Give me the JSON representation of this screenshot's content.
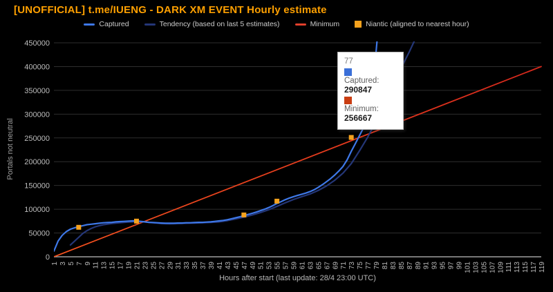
{
  "title": "[UNOFFICIAL] t.me/IUENG - DARK XM EVENT Hourly estimate",
  "legend": [
    {
      "id": "captured",
      "label": "Captured",
      "swatch": "line",
      "color": "#3E78E8"
    },
    {
      "id": "tendency",
      "label": "Tendency (based on last 5 estimates)",
      "swatch": "line",
      "color": "#243677"
    },
    {
      "id": "minimum",
      "label": "Minimum",
      "swatch": "line",
      "color": "#E2402C"
    },
    {
      "id": "niantic",
      "label": "Niantic (aligned to nearest hour)",
      "swatch": "square",
      "color": "#F6A21D"
    }
  ],
  "tooltip": {
    "hour": "77",
    "entries": [
      {
        "label": "Captured:",
        "value": "290847",
        "color": "#3A6FD8"
      },
      {
        "label": "Minimum:",
        "value": "256667",
        "color": "#C93D12"
      }
    ]
  },
  "colors": {
    "background": "#000000",
    "title": "#FFA000",
    "legend_text": "#CCCCCC",
    "tick_text": "#BDBDBD",
    "grid": "#2E2E2E",
    "baseline": "#C0C0C0",
    "captured": "#3E78E8",
    "tendency": "#243677",
    "minimum_start": "#F4511E",
    "minimum_end": "#D5281C",
    "niantic": "#F6A21D"
  },
  "chart_data": {
    "type": "line",
    "title": "[UNOFFICIAL] t.me/IUENG - DARK XM EVENT Hourly estimate",
    "xlabel": "Hours after start (last update: 28/4 23:00 UTC)",
    "ylabel": "Portals not neutral",
    "xlim": [
      1,
      119
    ],
    "ylim": [
      0,
      450000
    ],
    "grid": "horizontal",
    "legend_position": "top",
    "x_ticks": [
      1,
      3,
      5,
      7,
      9,
      11,
      13,
      15,
      17,
      19,
      21,
      23,
      25,
      27,
      29,
      31,
      33,
      35,
      37,
      39,
      41,
      43,
      45,
      47,
      49,
      51,
      53,
      55,
      57,
      59,
      61,
      63,
      65,
      67,
      69,
      71,
      73,
      75,
      77,
      79,
      81,
      83,
      85,
      87,
      89,
      91,
      93,
      95,
      97,
      99,
      101,
      103,
      105,
      107,
      109,
      111,
      113,
      115,
      117,
      119
    ],
    "y_ticks": [
      0,
      50000,
      100000,
      150000,
      200000,
      250000,
      300000,
      350000,
      400000,
      450000
    ],
    "series": [
      {
        "name": "Minimum",
        "type": "line",
        "color": "#E2402C",
        "points": [
          [
            1,
            0
          ],
          [
            119,
            400000
          ]
        ]
      },
      {
        "name": "Tendency (based on last 5 estimates)",
        "type": "line",
        "color": "#243677",
        "points": [
          [
            5,
            25000
          ],
          [
            6,
            33000
          ],
          [
            7,
            41000
          ],
          [
            8,
            49000
          ],
          [
            9,
            55000
          ],
          [
            10,
            59500
          ],
          [
            11,
            63000
          ],
          [
            12,
            65500
          ],
          [
            13,
            67500
          ],
          [
            15,
            70000
          ],
          [
            17,
            71500
          ],
          [
            19,
            73000
          ],
          [
            21,
            74000
          ],
          [
            23,
            73500
          ],
          [
            25,
            71500
          ],
          [
            27,
            70000
          ],
          [
            29,
            69500
          ],
          [
            31,
            70000
          ],
          [
            33,
            70500
          ],
          [
            35,
            71000
          ],
          [
            37,
            71500
          ],
          [
            39,
            72500
          ],
          [
            41,
            73500
          ],
          [
            43,
            76000
          ],
          [
            45,
            79500
          ],
          [
            47,
            83500
          ],
          [
            49,
            88000
          ],
          [
            51,
            93000
          ],
          [
            53,
            99000
          ],
          [
            55,
            106000
          ],
          [
            57,
            113500
          ],
          [
            59,
            120500
          ],
          [
            61,
            126500
          ],
          [
            63,
            132000
          ],
          [
            65,
            139500
          ],
          [
            67,
            149000
          ],
          [
            69,
            161000
          ],
          [
            71,
            176000
          ],
          [
            73,
            196000
          ],
          [
            75,
            223000
          ],
          [
            77,
            252000
          ],
          [
            79,
            285000
          ],
          [
            81,
            322000
          ],
          [
            83,
            360000
          ],
          [
            85,
            396000
          ],
          [
            87,
            430000
          ],
          [
            88.6,
            460000
          ]
        ]
      },
      {
        "name": "Captured",
        "type": "line",
        "color": "#3E78E8",
        "points": [
          [
            1,
            12000
          ],
          [
            2,
            33000
          ],
          [
            3,
            45000
          ],
          [
            4,
            53000
          ],
          [
            5,
            58000
          ],
          [
            6,
            61000
          ],
          [
            7,
            63500
          ],
          [
            8,
            65500
          ],
          [
            9,
            67500
          ],
          [
            10,
            68500
          ],
          [
            11,
            69500
          ],
          [
            12,
            70500
          ],
          [
            13,
            71500
          ],
          [
            14,
            72000
          ],
          [
            15,
            72500
          ],
          [
            16,
            73500
          ],
          [
            17,
            74000
          ],
          [
            18,
            74500
          ],
          [
            19,
            75000
          ],
          [
            20,
            75500
          ],
          [
            21,
            75500
          ],
          [
            22,
            74500
          ],
          [
            23,
            73500
          ],
          [
            24,
            72500
          ],
          [
            25,
            72000
          ],
          [
            26,
            71500
          ],
          [
            27,
            71000
          ],
          [
            28,
            70500
          ],
          [
            29,
            70500
          ],
          [
            30,
            70500
          ],
          [
            31,
            71000
          ],
          [
            32,
            71000
          ],
          [
            33,
            71500
          ],
          [
            34,
            71500
          ],
          [
            35,
            72000
          ],
          [
            36,
            72500
          ],
          [
            37,
            72500
          ],
          [
            38,
            73000
          ],
          [
            39,
            73500
          ],
          [
            40,
            74500
          ],
          [
            41,
            75500
          ],
          [
            42,
            76500
          ],
          [
            43,
            78000
          ],
          [
            44,
            80000
          ],
          [
            45,
            82000
          ],
          [
            46,
            84000
          ],
          [
            47,
            86500
          ],
          [
            48,
            89000
          ],
          [
            49,
            91500
          ],
          [
            50,
            94000
          ],
          [
            51,
            97000
          ],
          [
            52,
            100000
          ],
          [
            53,
            103500
          ],
          [
            54,
            107500
          ],
          [
            55,
            112000
          ],
          [
            56,
            116000
          ],
          [
            57,
            120000
          ],
          [
            58,
            123500
          ],
          [
            59,
            126500
          ],
          [
            60,
            129000
          ],
          [
            61,
            131500
          ],
          [
            62,
            134000
          ],
          [
            63,
            137000
          ],
          [
            64,
            141000
          ],
          [
            65,
            146000
          ],
          [
            66,
            151500
          ],
          [
            67,
            158000
          ],
          [
            68,
            164500
          ],
          [
            69,
            172000
          ],
          [
            70,
            180500
          ],
          [
            71,
            190000
          ],
          [
            72,
            204000
          ],
          [
            73,
            222000
          ],
          [
            74,
            238000
          ],
          [
            75,
            255000
          ],
          [
            76,
            272000
          ],
          [
            77,
            290847
          ],
          [
            78,
            335000
          ],
          [
            79,
            430000
          ],
          [
            79.4,
            470000
          ]
        ]
      },
      {
        "name": "Niantic (aligned to nearest hour)",
        "type": "points",
        "color": "#F6A21D",
        "points": [
          [
            7,
            62000
          ],
          [
            21,
            75000
          ],
          [
            47,
            88000
          ],
          [
            55,
            117000
          ],
          [
            73,
            251000
          ]
        ]
      }
    ]
  }
}
